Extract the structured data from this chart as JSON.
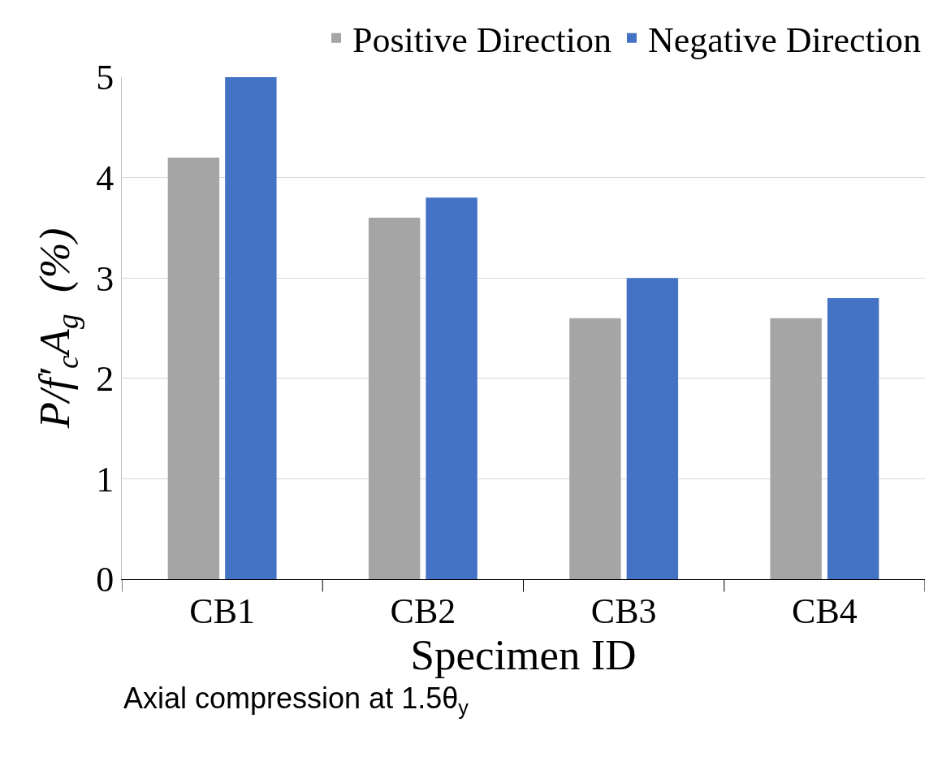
{
  "chart_data": {
    "type": "bar",
    "xlabel": "Specimen ID",
    "ylabel": "P/f′$_{c}$A$_{g}$  (%)",
    "categories": [
      "CB1",
      "CB2",
      "CB3",
      "CB4"
    ],
    "series": [
      {
        "name": "Positive Direction",
        "color": "#a5a5a5",
        "values": [
          4.2,
          3.6,
          2.6,
          2.6
        ]
      },
      {
        "name": "Negative Direction",
        "color": "#4472c4",
        "values": [
          5.0,
          3.8,
          3.0,
          2.8
        ]
      }
    ],
    "ylim": [
      0,
      5
    ],
    "yticks": [
      0,
      1,
      2,
      3,
      4,
      5
    ],
    "grid": "y",
    "legend": "top",
    "annotations": [
      "Axial compression at 1.5θ$_{y}$"
    ]
  }
}
